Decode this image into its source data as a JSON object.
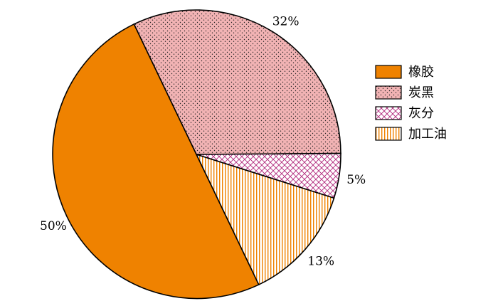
{
  "chart_data": {
    "type": "pie",
    "slices": [
      {
        "name": "橡胶",
        "value": 50,
        "label": "50%",
        "color": "#ef8200",
        "pattern": "solid"
      },
      {
        "name": "炭黑",
        "value": 32,
        "label": "32%",
        "color": "#f2b3b4",
        "pattern": "dots"
      },
      {
        "name": "灰分",
        "value": 5,
        "label": "5%",
        "color": "#b0267a",
        "pattern": "crosshatch"
      },
      {
        "name": "加工油",
        "value": 13,
        "label": "13%",
        "color": "#ef8200",
        "pattern": "vertical-lines"
      }
    ],
    "legend_position": "right"
  }
}
